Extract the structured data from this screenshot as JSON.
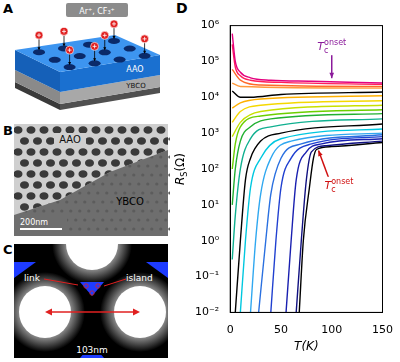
{
  "panels": [
    {
      "letter": "A",
      "labels": {
        "ions": "Ar⁺, CF₃⁺",
        "top": "AAO",
        "bottom": "YBCO"
      }
    },
    {
      "letter": "B",
      "labels": {
        "top": "AAO",
        "bottom": "YBCO",
        "scale": "200nm"
      }
    },
    {
      "letter": "C",
      "labels": {
        "link": "link",
        "island": "island",
        "period": "103nm"
      }
    },
    {
      "letter": "D"
    }
  ],
  "chart_data": {
    "type": "line",
    "x_label": "T(K)",
    "y_label": {
      "base": "R",
      "sub": "S",
      "after": "(Ω)"
    },
    "log": "y",
    "grid": false,
    "xlim": [
      0,
      150
    ],
    "xticks": [
      0,
      50,
      100,
      150
    ],
    "ylim": [
      0.01,
      1000000
    ],
    "yticks": [
      {
        "value": 0.01,
        "label": "10⁻²"
      },
      {
        "value": 0.1,
        "label": "10⁻¹"
      },
      {
        "value": 1,
        "label": "10⁰"
      },
      {
        "value": 10,
        "label": "10¹"
      },
      {
        "value": 100,
        "label": "10²"
      },
      {
        "value": 1000,
        "label": "10³"
      },
      {
        "value": 10000,
        "label": "10⁴"
      },
      {
        "value": 100000,
        "label": "10⁵"
      },
      {
        "value": 1000000,
        "label": "10⁶"
      }
    ],
    "annotations": [
      {
        "base": "T",
        "sub": "c",
        "sup": "onset",
        "x": 100,
        "y": 30000,
        "color": "#8b1a9b"
      },
      {
        "base": "T",
        "sub": "c",
        "sup": "onset",
        "x": 85,
        "y": 400,
        "color": "#d01010"
      }
    ],
    "series": [
      {
        "color": "#e4007f",
        "x": [
          2,
          5,
          10,
          20,
          40,
          80,
          150
        ],
        "values": [
          600000,
          100000,
          50000,
          35000,
          30000,
          28000,
          25000
        ]
      },
      {
        "color": "#ff1f5a",
        "x": [
          2,
          5,
          10,
          20,
          50,
          150
        ],
        "values": [
          300000,
          70000,
          40000,
          30000,
          26000,
          23000
        ]
      },
      {
        "color": "#ff6a2a",
        "x": [
          2,
          10,
          30,
          150
        ],
        "values": [
          60000,
          30000,
          22000,
          20000
        ]
      },
      {
        "color": "#ff9a3c",
        "x": [
          2,
          10,
          150
        ],
        "values": [
          25000,
          20000,
          18000
        ]
      },
      {
        "color": "#000000",
        "x": [
          2,
          10,
          20,
          50,
          150
        ],
        "values": [
          15000,
          10000,
          10000,
          12000,
          14000
        ]
      },
      {
        "color": "#ffb000",
        "x": [
          2,
          10,
          30,
          150
        ],
        "values": [
          5000,
          7000,
          9000,
          11000
        ]
      },
      {
        "color": "#f5d800",
        "x": [
          2,
          10,
          30,
          150
        ],
        "values": [
          2000,
          4000,
          6000,
          8000
        ]
      },
      {
        "color": "#c8e000",
        "x": [
          2,
          10,
          30,
          150
        ],
        "values": [
          800,
          2000,
          4000,
          6000
        ]
      },
      {
        "color": "#6cd000",
        "x": [
          2,
          5,
          10,
          30,
          150
        ],
        "values": [
          100,
          500,
          1500,
          3000,
          4500
        ]
      },
      {
        "color": "#20b030",
        "x": [
          2,
          5,
          10,
          20,
          40,
          150
        ],
        "values": [
          10,
          100,
          600,
          1500,
          2500,
          3500
        ]
      },
      {
        "color": "#10b090",
        "x": [
          2,
          5,
          10,
          20,
          40,
          150
        ],
        "values": [
          0.3,
          5,
          100,
          700,
          1500,
          2500
        ]
      },
      {
        "color": "#000000",
        "x": [
          5,
          10,
          15,
          20,
          30,
          50,
          150
        ],
        "values": [
          0.01,
          1,
          50,
          200,
          600,
          1000,
          1800
        ]
      },
      {
        "color": "#00c8e0",
        "x": [
          10,
          15,
          20,
          30,
          50,
          150
        ],
        "values": [
          0.01,
          1,
          30,
          200,
          700,
          1300
        ]
      },
      {
        "color": "#30a8f0",
        "x": [
          20,
          25,
          30,
          40,
          60,
          150
        ],
        "values": [
          0.01,
          1,
          20,
          200,
          600,
          1000
        ]
      },
      {
        "color": "#2a70e0",
        "x": [
          28,
          35,
          40,
          50,
          70,
          150
        ],
        "values": [
          0.01,
          1,
          20,
          200,
          500,
          900
        ]
      },
      {
        "color": "#2040d0",
        "x": [
          40,
          45,
          50,
          60,
          80,
          150
        ],
        "values": [
          0.01,
          1,
          30,
          200,
          500,
          800
        ]
      },
      {
        "color": "#1a20b0",
        "x": [
          55,
          60,
          65,
          75,
          90,
          150
        ],
        "values": [
          0.01,
          1,
          50,
          300,
          500,
          700
        ]
      },
      {
        "color": "#101080",
        "x": [
          65,
          70,
          75,
          80,
          95,
          150
        ],
        "values": [
          0.01,
          1,
          50,
          300,
          450,
          600
        ]
      },
      {
        "color": "#000000",
        "x": [
          68,
          72,
          78,
          82,
          85,
          100,
          150
        ],
        "values": [
          0.01,
          1,
          30,
          200,
          350,
          420,
          550
        ]
      }
    ]
  }
}
